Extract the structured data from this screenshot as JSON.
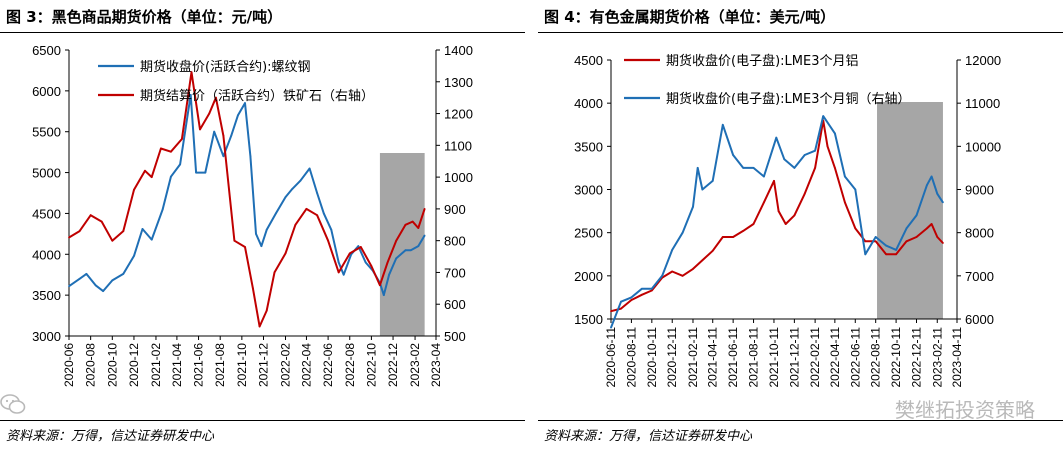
{
  "colors": {
    "blue": "#1f6fb5",
    "red": "#c00000",
    "shade": "#a6a6a6"
  },
  "watermark": {
    "text": "樊继拓投资策略",
    "icon": "wechat-icon"
  },
  "chart_data": [
    {
      "title": "图 3：黑色商品期货价格（单位：元/吨）",
      "source": "资料来源：万得，信达证券研发中心",
      "type": "line",
      "x": [
        "2020-06",
        "2020-08",
        "2020-10",
        "2020-12",
        "2021-02",
        "2021-04",
        "2021-06",
        "2021-08",
        "2021-10",
        "2021-12",
        "2022-02",
        "2022-04",
        "2022-06",
        "2022-08",
        "2022-10",
        "2022-12",
        "2023-02",
        "2023-04"
      ],
      "xlim": [
        "2020-06-01",
        "2023-04-01"
      ],
      "y_left": {
        "ticks": [
          "3000",
          "3500",
          "4000",
          "4500",
          "5000",
          "5500",
          "6000",
          "6500"
        ],
        "range": [
          3000,
          6500
        ]
      },
      "y_right": {
        "ticks": [
          "500",
          "600",
          "700",
          "800",
          "900",
          "1000",
          "1100",
          "1200",
          "1300",
          "1400"
        ],
        "range": [
          500,
          1400
        ]
      },
      "legend": "top-left",
      "grid": false,
      "shaded_region": {
        "start": "2022-10-25",
        "end": "2023-02-28"
      },
      "series": [
        {
          "name": "期货收盘价(活跃合约):螺纹钢",
          "axis": "left",
          "color": "blue",
          "points": [
            [
              "2020-06-01",
              3610
            ],
            [
              "2020-07-01",
              3700
            ],
            [
              "2020-07-20",
              3760
            ],
            [
              "2020-08-15",
              3620
            ],
            [
              "2020-09-05",
              3550
            ],
            [
              "2020-10-01",
              3680
            ],
            [
              "2020-11-01",
              3760
            ],
            [
              "2020-12-01",
              3980
            ],
            [
              "2020-12-25",
              4310
            ],
            [
              "2021-01-20",
              4180
            ],
            [
              "2021-02-20",
              4550
            ],
            [
              "2021-03-15",
              4950
            ],
            [
              "2021-04-10",
              5100
            ],
            [
              "2021-05-10",
              5950
            ],
            [
              "2021-05-25",
              5000
            ],
            [
              "2021-06-20",
              5000
            ],
            [
              "2021-07-15",
              5500
            ],
            [
              "2021-08-10",
              5200
            ],
            [
              "2021-09-01",
              5450
            ],
            [
              "2021-09-20",
              5700
            ],
            [
              "2021-10-10",
              5850
            ],
            [
              "2021-10-25",
              5200
            ],
            [
              "2021-11-10",
              4250
            ],
            [
              "2021-11-25",
              4100
            ],
            [
              "2021-12-10",
              4300
            ],
            [
              "2022-01-05",
              4500
            ],
            [
              "2022-02-01",
              4700
            ],
            [
              "2022-02-20",
              4800
            ],
            [
              "2022-03-15",
              4900
            ],
            [
              "2022-04-10",
              5050
            ],
            [
              "2022-05-01",
              4750
            ],
            [
              "2022-05-20",
              4500
            ],
            [
              "2022-06-10",
              4300
            ],
            [
              "2022-07-01",
              3900
            ],
            [
              "2022-07-15",
              3750
            ],
            [
              "2022-08-05",
              4000
            ],
            [
              "2022-08-25",
              4100
            ],
            [
              "2022-09-15",
              3900
            ],
            [
              "2022-10-05",
              3800
            ],
            [
              "2022-10-25",
              3650
            ],
            [
              "2022-11-05",
              3500
            ],
            [
              "2022-11-20",
              3750
            ],
            [
              "2022-12-10",
              3950
            ],
            [
              "2023-01-05",
              4050
            ],
            [
              "2023-01-20",
              4050
            ],
            [
              "2023-02-10",
              4100
            ],
            [
              "2023-02-28",
              4230
            ]
          ]
        },
        {
          "name": "期货结算价（活跃合约）铁矿石（右轴）",
          "axis": "right",
          "color": "red",
          "points": [
            [
              "2020-06-01",
              810
            ],
            [
              "2020-07-01",
              830
            ],
            [
              "2020-08-01",
              880
            ],
            [
              "2020-09-01",
              860
            ],
            [
              "2020-10-01",
              800
            ],
            [
              "2020-11-01",
              830
            ],
            [
              "2020-12-01",
              960
            ],
            [
              "2021-01-01",
              1020
            ],
            [
              "2021-01-20",
              1000
            ],
            [
              "2021-02-15",
              1090
            ],
            [
              "2021-03-15",
              1080
            ],
            [
              "2021-04-15",
              1120
            ],
            [
              "2021-05-12",
              1330
            ],
            [
              "2021-06-05",
              1150
            ],
            [
              "2021-07-01",
              1200
            ],
            [
              "2021-07-20",
              1250
            ],
            [
              "2021-08-10",
              1130
            ],
            [
              "2021-09-10",
              800
            ],
            [
              "2021-10-10",
              780
            ],
            [
              "2021-11-01",
              650
            ],
            [
              "2021-11-20",
              530
            ],
            [
              "2021-12-10",
              580
            ],
            [
              "2022-01-01",
              700
            ],
            [
              "2022-02-01",
              760
            ],
            [
              "2022-03-01",
              850
            ],
            [
              "2022-04-01",
              900
            ],
            [
              "2022-05-01",
              880
            ],
            [
              "2022-06-01",
              800
            ],
            [
              "2022-07-01",
              700
            ],
            [
              "2022-08-01",
              760
            ],
            [
              "2022-09-01",
              780
            ],
            [
              "2022-10-01",
              720
            ],
            [
              "2022-10-25",
              660
            ],
            [
              "2022-11-15",
              730
            ],
            [
              "2022-12-10",
              800
            ],
            [
              "2023-01-05",
              850
            ],
            [
              "2023-01-25",
              860
            ],
            [
              "2023-02-10",
              840
            ],
            [
              "2023-02-28",
              900
            ]
          ]
        }
      ]
    },
    {
      "title": "图 4：有色金属期货价格（单位：美元/吨）",
      "source": "资料来源：万得，信达证券研发中心",
      "type": "line",
      "x": [
        "2020-06-11",
        "2020-08-11",
        "2020-10-11",
        "2020-12-11",
        "2021-02-11",
        "2021-04-11",
        "2021-06-11",
        "2021-08-11",
        "2021-10-11",
        "2021-12-11",
        "2022-02-11",
        "2022-04-11",
        "2022-06-11",
        "2022-08-11",
        "2022-10-11",
        "2022-12-11",
        "2023-02-11",
        "2023-04-11"
      ],
      "xlim": [
        "2020-06-11",
        "2023-04-11"
      ],
      "y_left": {
        "ticks": [
          "1500",
          "2000",
          "2500",
          "3000",
          "3500",
          "4000",
          "4500"
        ],
        "range": [
          1500,
          4500
        ]
      },
      "y_right": {
        "ticks": [
          "6000",
          "7000",
          "8000",
          "9000",
          "10000",
          "11000",
          "12000"
        ],
        "range": [
          6000,
          12000
        ]
      },
      "legend": "top-left",
      "grid": false,
      "shaded_region": {
        "start": "2022-08-15",
        "end": "2023-02-28"
      },
      "series": [
        {
          "name": "期货收盘价(电子盘):LME3个月铝",
          "axis": "left",
          "color": "red",
          "points": [
            [
              "2020-06-11",
              1590
            ],
            [
              "2020-07-11",
              1620
            ],
            [
              "2020-08-11",
              1720
            ],
            [
              "2020-09-11",
              1780
            ],
            [
              "2020-10-11",
              1830
            ],
            [
              "2020-11-11",
              1980
            ],
            [
              "2020-12-11",
              2050
            ],
            [
              "2021-01-11",
              2000
            ],
            [
              "2021-02-11",
              2080
            ],
            [
              "2021-03-11",
              2180
            ],
            [
              "2021-04-11",
              2290
            ],
            [
              "2021-05-11",
              2450
            ],
            [
              "2021-06-11",
              2450
            ],
            [
              "2021-07-11",
              2520
            ],
            [
              "2021-08-11",
              2600
            ],
            [
              "2021-09-11",
              2850
            ],
            [
              "2021-10-11",
              3100
            ],
            [
              "2021-10-25",
              2750
            ],
            [
              "2021-11-15",
              2600
            ],
            [
              "2021-12-11",
              2700
            ],
            [
              "2022-01-11",
              2950
            ],
            [
              "2022-02-11",
              3250
            ],
            [
              "2022-03-07",
              3800
            ],
            [
              "2022-03-20",
              3500
            ],
            [
              "2022-04-11",
              3250
            ],
            [
              "2022-05-11",
              2850
            ],
            [
              "2022-06-11",
              2550
            ],
            [
              "2022-07-11",
              2400
            ],
            [
              "2022-08-11",
              2400
            ],
            [
              "2022-09-11",
              2250
            ],
            [
              "2022-10-11",
              2250
            ],
            [
              "2022-11-11",
              2400
            ],
            [
              "2022-12-11",
              2450
            ],
            [
              "2023-01-11",
              2550
            ],
            [
              "2023-01-25",
              2600
            ],
            [
              "2023-02-11",
              2450
            ],
            [
              "2023-02-28",
              2380
            ]
          ]
        },
        {
          "name": "期货收盘价(电子盘):LME3个月铜（右轴）",
          "axis": "right",
          "color": "blue",
          "points": [
            [
              "2020-06-11",
              5800
            ],
            [
              "2020-07-11",
              6400
            ],
            [
              "2020-08-11",
              6500
            ],
            [
              "2020-09-11",
              6700
            ],
            [
              "2020-10-11",
              6700
            ],
            [
              "2020-11-11",
              7000
            ],
            [
              "2020-12-11",
              7600
            ],
            [
              "2021-01-11",
              8000
            ],
            [
              "2021-02-11",
              8600
            ],
            [
              "2021-02-25",
              9500
            ],
            [
              "2021-03-11",
              9000
            ],
            [
              "2021-04-11",
              9200
            ],
            [
              "2021-05-11",
              10500
            ],
            [
              "2021-06-11",
              9800
            ],
            [
              "2021-07-11",
              9500
            ],
            [
              "2021-08-11",
              9500
            ],
            [
              "2021-09-11",
              9300
            ],
            [
              "2021-10-18",
              10200
            ],
            [
              "2021-11-11",
              9700
            ],
            [
              "2021-12-11",
              9500
            ],
            [
              "2022-01-11",
              9800
            ],
            [
              "2022-02-11",
              9900
            ],
            [
              "2022-03-07",
              10700
            ],
            [
              "2022-04-11",
              10300
            ],
            [
              "2022-05-11",
              9300
            ],
            [
              "2022-06-11",
              9000
            ],
            [
              "2022-07-11",
              7500
            ],
            [
              "2022-08-11",
              7900
            ],
            [
              "2022-09-11",
              7700
            ],
            [
              "2022-10-11",
              7600
            ],
            [
              "2022-11-11",
              8100
            ],
            [
              "2022-12-11",
              8400
            ],
            [
              "2023-01-11",
              9100
            ],
            [
              "2023-01-25",
              9300
            ],
            [
              "2023-02-11",
              8900
            ],
            [
              "2023-02-28",
              8700
            ]
          ]
        }
      ]
    }
  ]
}
